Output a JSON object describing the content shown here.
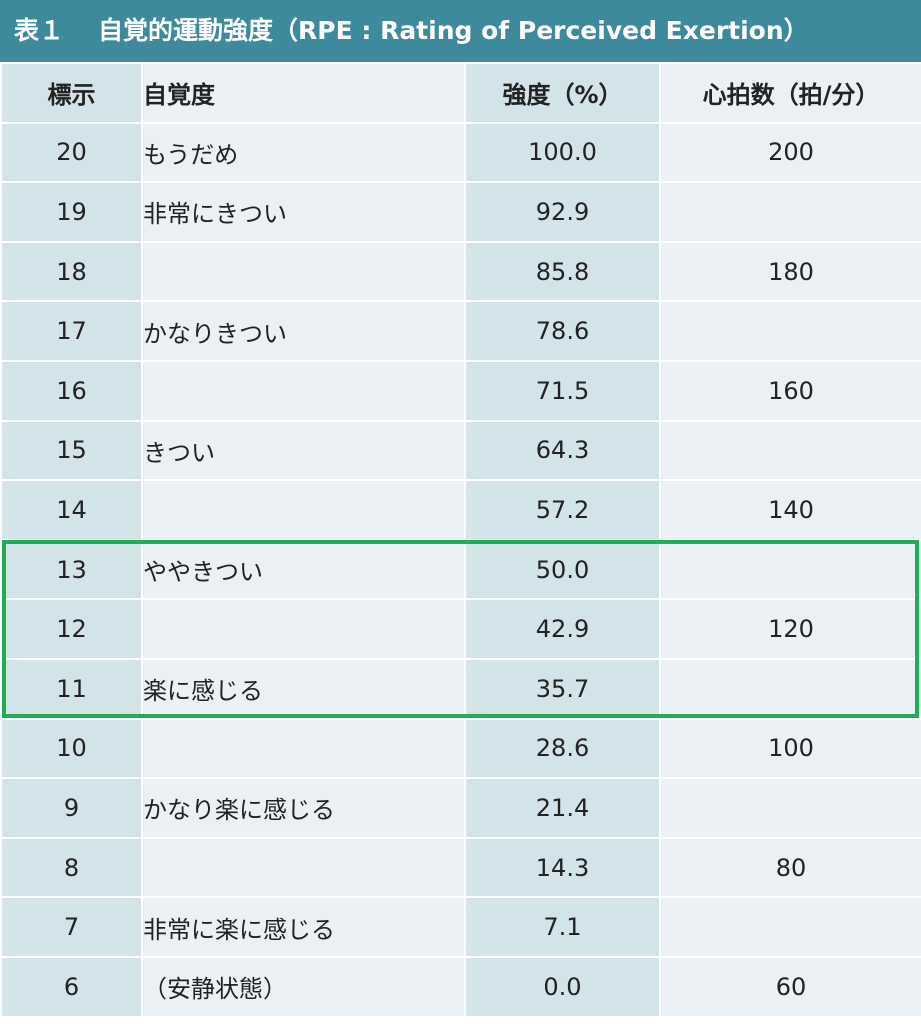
{
  "title": {
    "label": "表１",
    "text": "自覚的運動強度（RPE : Rating of Perceived Exertion）"
  },
  "table": {
    "headers": [
      "標示",
      "自覚度",
      "強度（%）",
      "心拍数（拍/分）"
    ],
    "rows": [
      {
        "scale": "20",
        "perception": "もうだめ",
        "intensity": "100.0",
        "heart_rate": "200"
      },
      {
        "scale": "19",
        "perception": "非常にきつい",
        "intensity": "92.9",
        "heart_rate": ""
      },
      {
        "scale": "18",
        "perception": "",
        "intensity": "85.8",
        "heart_rate": "180"
      },
      {
        "scale": "17",
        "perception": "かなりきつい",
        "intensity": "78.6",
        "heart_rate": ""
      },
      {
        "scale": "16",
        "perception": "",
        "intensity": "71.5",
        "heart_rate": "160"
      },
      {
        "scale": "15",
        "perception": "きつい",
        "intensity": "64.3",
        "heart_rate": ""
      },
      {
        "scale": "14",
        "perception": "",
        "intensity": "57.2",
        "heart_rate": "140"
      },
      {
        "scale": "13",
        "perception": "ややきつい",
        "intensity": "50.0",
        "heart_rate": ""
      },
      {
        "scale": "12",
        "perception": "",
        "intensity": "42.9",
        "heart_rate": "120"
      },
      {
        "scale": "11",
        "perception": "楽に感じる",
        "intensity": "35.7",
        "heart_rate": ""
      },
      {
        "scale": "10",
        "perception": "",
        "intensity": "28.6",
        "heart_rate": "100"
      },
      {
        "scale": "9",
        "perception": "かなり楽に感じる",
        "intensity": "21.4",
        "heart_rate": ""
      },
      {
        "scale": "8",
        "perception": "",
        "intensity": "14.3",
        "heart_rate": "80"
      },
      {
        "scale": "7",
        "perception": "非常に楽に感じる",
        "intensity": "7.1",
        "heart_rate": ""
      },
      {
        "scale": "6",
        "perception": "（安静状態）",
        "intensity": "0.0",
        "heart_rate": "60"
      }
    ],
    "highlighted_scales": [
      "13",
      "12",
      "11"
    ]
  },
  "colors": {
    "title_background": "#3d8a9c",
    "title_text": "#ffffff",
    "cell_dark": "#d3e3ea",
    "cell_light": "#eaf0f3",
    "highlight_border": "#1fae55"
  }
}
